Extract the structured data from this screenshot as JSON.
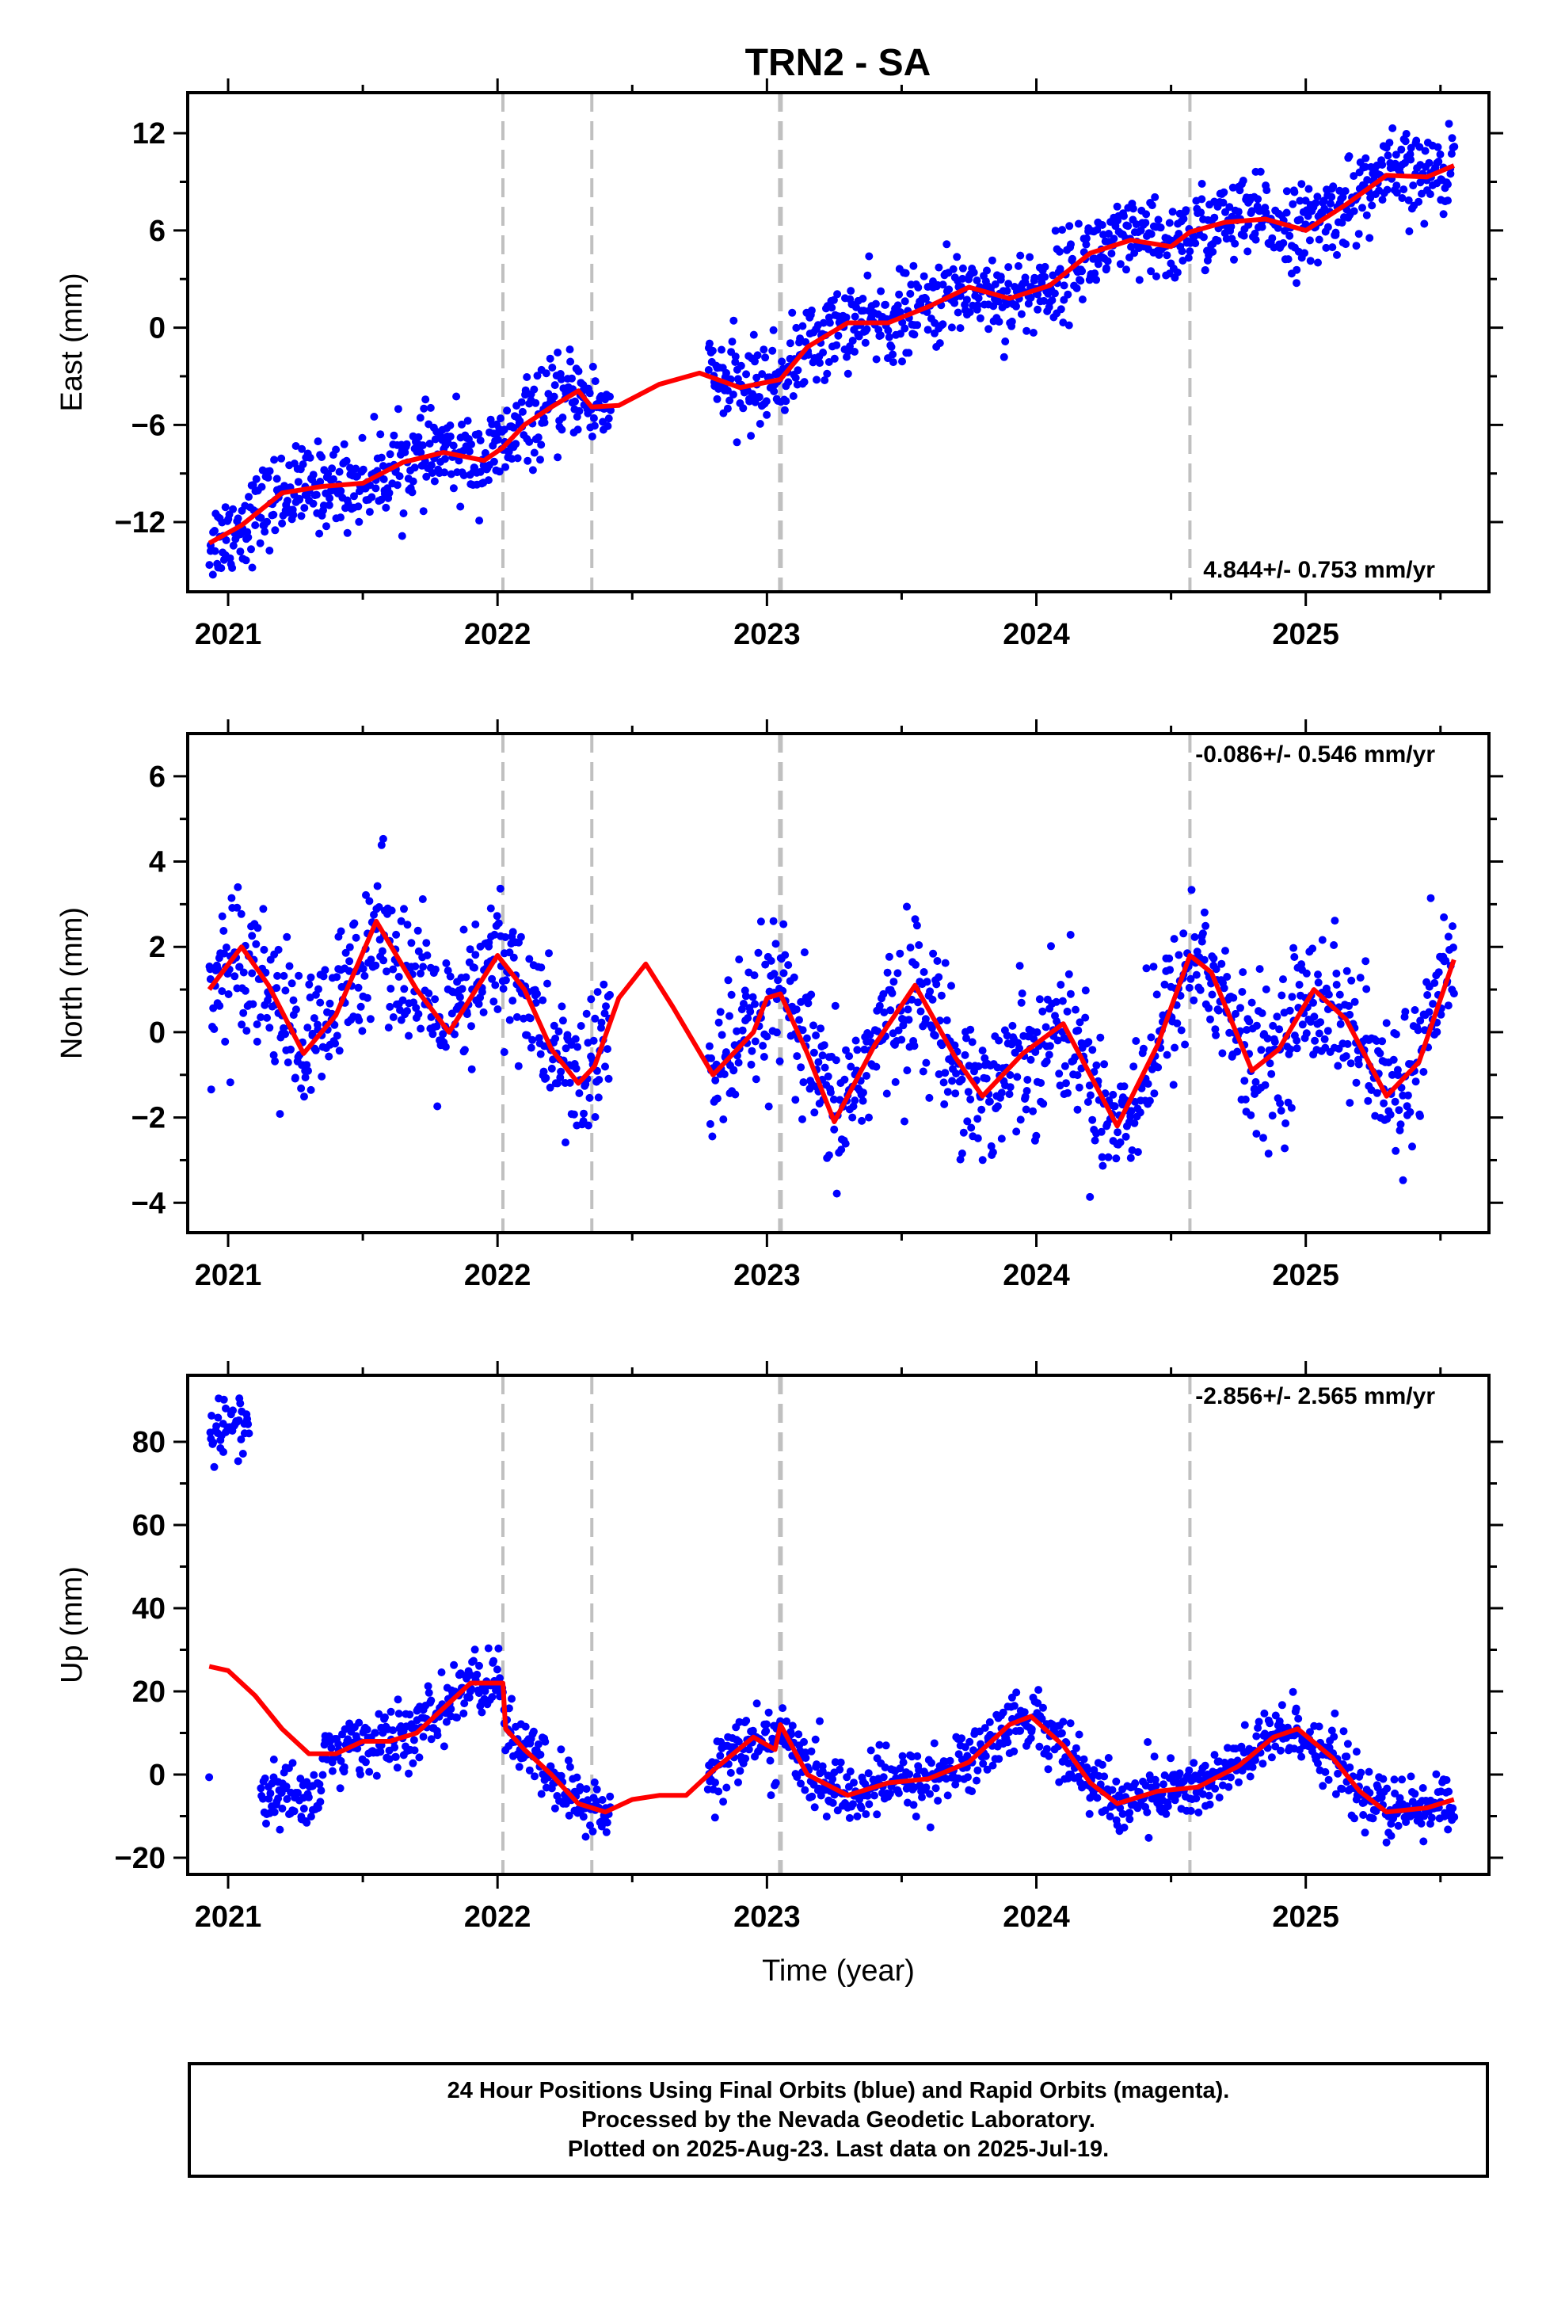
{
  "title": "TRN2 - SA",
  "colors": {
    "points": "#0000ff",
    "model": "#ff0000",
    "offset_lines": "#c0c0c0",
    "frame": "#000000"
  },
  "chart_data": [
    {
      "type": "scatter",
      "ylabel": "East (mm)",
      "xlabel": "",
      "xlim": [
        2020.85,
        2025.68
      ],
      "ylim": [
        -16.3,
        14.5
      ],
      "yticks": [
        -12,
        -6,
        0,
        6,
        12
      ],
      "xticks": [
        2021,
        2022,
        2023,
        2024,
        2025
      ],
      "rate_text": "4.844+/- 0.753 mm/yr",
      "rate_position": "bottom-right",
      "offset_lines": [
        2022.02,
        2022.35,
        2023.05,
        2024.57
      ],
      "data_range": [
        2020.93,
        2025.55
      ],
      "trend": {
        "t0": 2020.93,
        "y0": -13.2,
        "rate": 4.844
      },
      "model_curve": {
        "x": [
          2020.93,
          2021.05,
          2021.2,
          2021.35,
          2021.5,
          2021.65,
          2021.8,
          2021.95,
          2022.02,
          2022.1,
          2022.2,
          2022.3,
          2022.35,
          2022.45,
          2022.6,
          2022.75,
          2022.9,
          2023.05,
          2023.15,
          2023.3,
          2023.45,
          2023.6,
          2023.75,
          2023.9,
          2024.05,
          2024.2,
          2024.35,
          2024.5,
          2024.57,
          2024.7,
          2024.85,
          2025.0,
          2025.15,
          2025.3,
          2025.45,
          2025.55
        ],
        "y": [
          -13.3,
          -12.2,
          -10.2,
          -9.8,
          -9.6,
          -8.3,
          -7.7,
          -8.2,
          -7.4,
          -6.0,
          -4.9,
          -3.9,
          -4.9,
          -4.8,
          -3.5,
          -2.8,
          -3.7,
          -3.2,
          -1.2,
          0.3,
          0.3,
          1.3,
          2.5,
          1.8,
          2.6,
          4.6,
          5.4,
          5.0,
          5.9,
          6.5,
          6.7,
          6.0,
          7.6,
          9.4,
          9.3,
          10.0
        ]
      },
      "scatter": {
        "count": 1500,
        "noise_sd": 1.3,
        "gaps": [
          [
            2022.42,
            2022.78
          ]
        ]
      }
    },
    {
      "type": "scatter",
      "ylabel": "North (mm)",
      "xlabel": "",
      "xlim": [
        2020.85,
        2025.68
      ],
      "ylim": [
        -4.7,
        7.0
      ],
      "yticks": [
        -4,
        -2,
        0,
        2,
        4,
        6
      ],
      "xticks": [
        2021,
        2022,
        2023,
        2024,
        2025
      ],
      "rate_text": "-0.086+/- 0.546 mm/yr",
      "rate_position": "top-right",
      "offset_lines": [
        2022.02,
        2022.35,
        2023.05,
        2024.57
      ],
      "data_range": [
        2020.93,
        2025.55
      ],
      "model_curve": {
        "x": [
          2020.93,
          2021.05,
          2021.15,
          2021.28,
          2021.4,
          2021.55,
          2021.7,
          2021.82,
          2021.95,
          2022.0,
          2022.1,
          2022.2,
          2022.3,
          2022.36,
          2022.45,
          2022.55,
          2022.65,
          2022.8,
          2022.95,
          2023.0,
          2023.05,
          2023.15,
          2023.25,
          2023.4,
          2023.55,
          2023.7,
          2023.8,
          2023.95,
          2024.1,
          2024.2,
          2024.3,
          2024.45,
          2024.57,
          2024.65,
          2024.8,
          2024.9,
          2025.03,
          2025.15,
          2025.3,
          2025.42,
          2025.55
        ],
        "y": [
          1.0,
          2.0,
          1.1,
          -0.5,
          0.4,
          2.6,
          1.0,
          0.0,
          1.3,
          1.8,
          1.0,
          -0.4,
          -1.2,
          -0.8,
          0.8,
          1.6,
          0.6,
          -1.0,
          0.0,
          0.8,
          0.9,
          -0.5,
          -2.1,
          -0.3,
          1.1,
          -0.6,
          -1.5,
          -0.5,
          0.2,
          -1.0,
          -2.2,
          -0.3,
          1.8,
          1.4,
          -0.9,
          -0.4,
          1.0,
          0.3,
          -1.5,
          -0.7,
          1.7
        ]
      },
      "scatter": {
        "count": 1500,
        "noise_sd": 0.85,
        "gaps": [
          [
            2022.42,
            2022.78
          ]
        ]
      }
    },
    {
      "type": "scatter",
      "ylabel": "Up (mm)",
      "xlabel": "Time (year)",
      "xlim": [
        2020.85,
        2025.68
      ],
      "ylim": [
        -24,
        96
      ],
      "yticks": [
        -20,
        0,
        20,
        40,
        60,
        80
      ],
      "xticks": [
        2021,
        2022,
        2023,
        2024,
        2025
      ],
      "rate_text": "-2.856+/- 2.565 mm/yr",
      "rate_position": "top-right",
      "offset_lines": [
        2022.02,
        2022.35,
        2023.05,
        2024.57
      ],
      "data_range": [
        2020.93,
        2025.55
      ],
      "outlier_cluster": {
        "x_range": [
          2020.93,
          2021.08
        ],
        "y_center": 84,
        "y_sd": 4
      },
      "model_curve": {
        "x": [
          2020.93,
          2021.0,
          2021.1,
          2021.2,
          2021.3,
          2021.4,
          2021.5,
          2021.6,
          2021.7,
          2021.8,
          2021.9,
          2021.97,
          2022.02,
          2022.03,
          2022.1,
          2022.2,
          2022.3,
          2022.4,
          2022.5,
          2022.6,
          2022.7,
          2022.8,
          2022.95,
          2023.03,
          2023.05,
          2023.15,
          2023.3,
          2023.45,
          2023.6,
          2023.75,
          2023.9,
          2023.98,
          2024.1,
          2024.2,
          2024.3,
          2024.45,
          2024.6,
          2024.75,
          2024.88,
          2024.97,
          2025.1,
          2025.2,
          2025.3,
          2025.45,
          2025.55
        ],
        "y": [
          26,
          25,
          19,
          11,
          5,
          5,
          8,
          8,
          10,
          16,
          22,
          22,
          22,
          11,
          6,
          0,
          -7,
          -9,
          -6,
          -5,
          -5,
          1,
          9,
          6,
          12,
          0,
          -5,
          -2,
          -1,
          3,
          12,
          14,
          7,
          -2,
          -7,
          -4,
          -3,
          2,
          9,
          11,
          4,
          -4,
          -9,
          -8,
          -6
        ]
      },
      "scatter": {
        "count": 1400,
        "noise_sd": 3.8,
        "gaps": [
          [
            2021.08,
            2021.12
          ],
          [
            2022.42,
            2022.78
          ]
        ]
      }
    }
  ],
  "footer": {
    "line1": "24 Hour Positions Using Final Orbits (blue) and Rapid Orbits (magenta).",
    "line2": "Processed by the Nevada Geodetic Laboratory.",
    "line3": "Plotted on 2025-Aug-23. Last data on 2025-Jul-19."
  }
}
